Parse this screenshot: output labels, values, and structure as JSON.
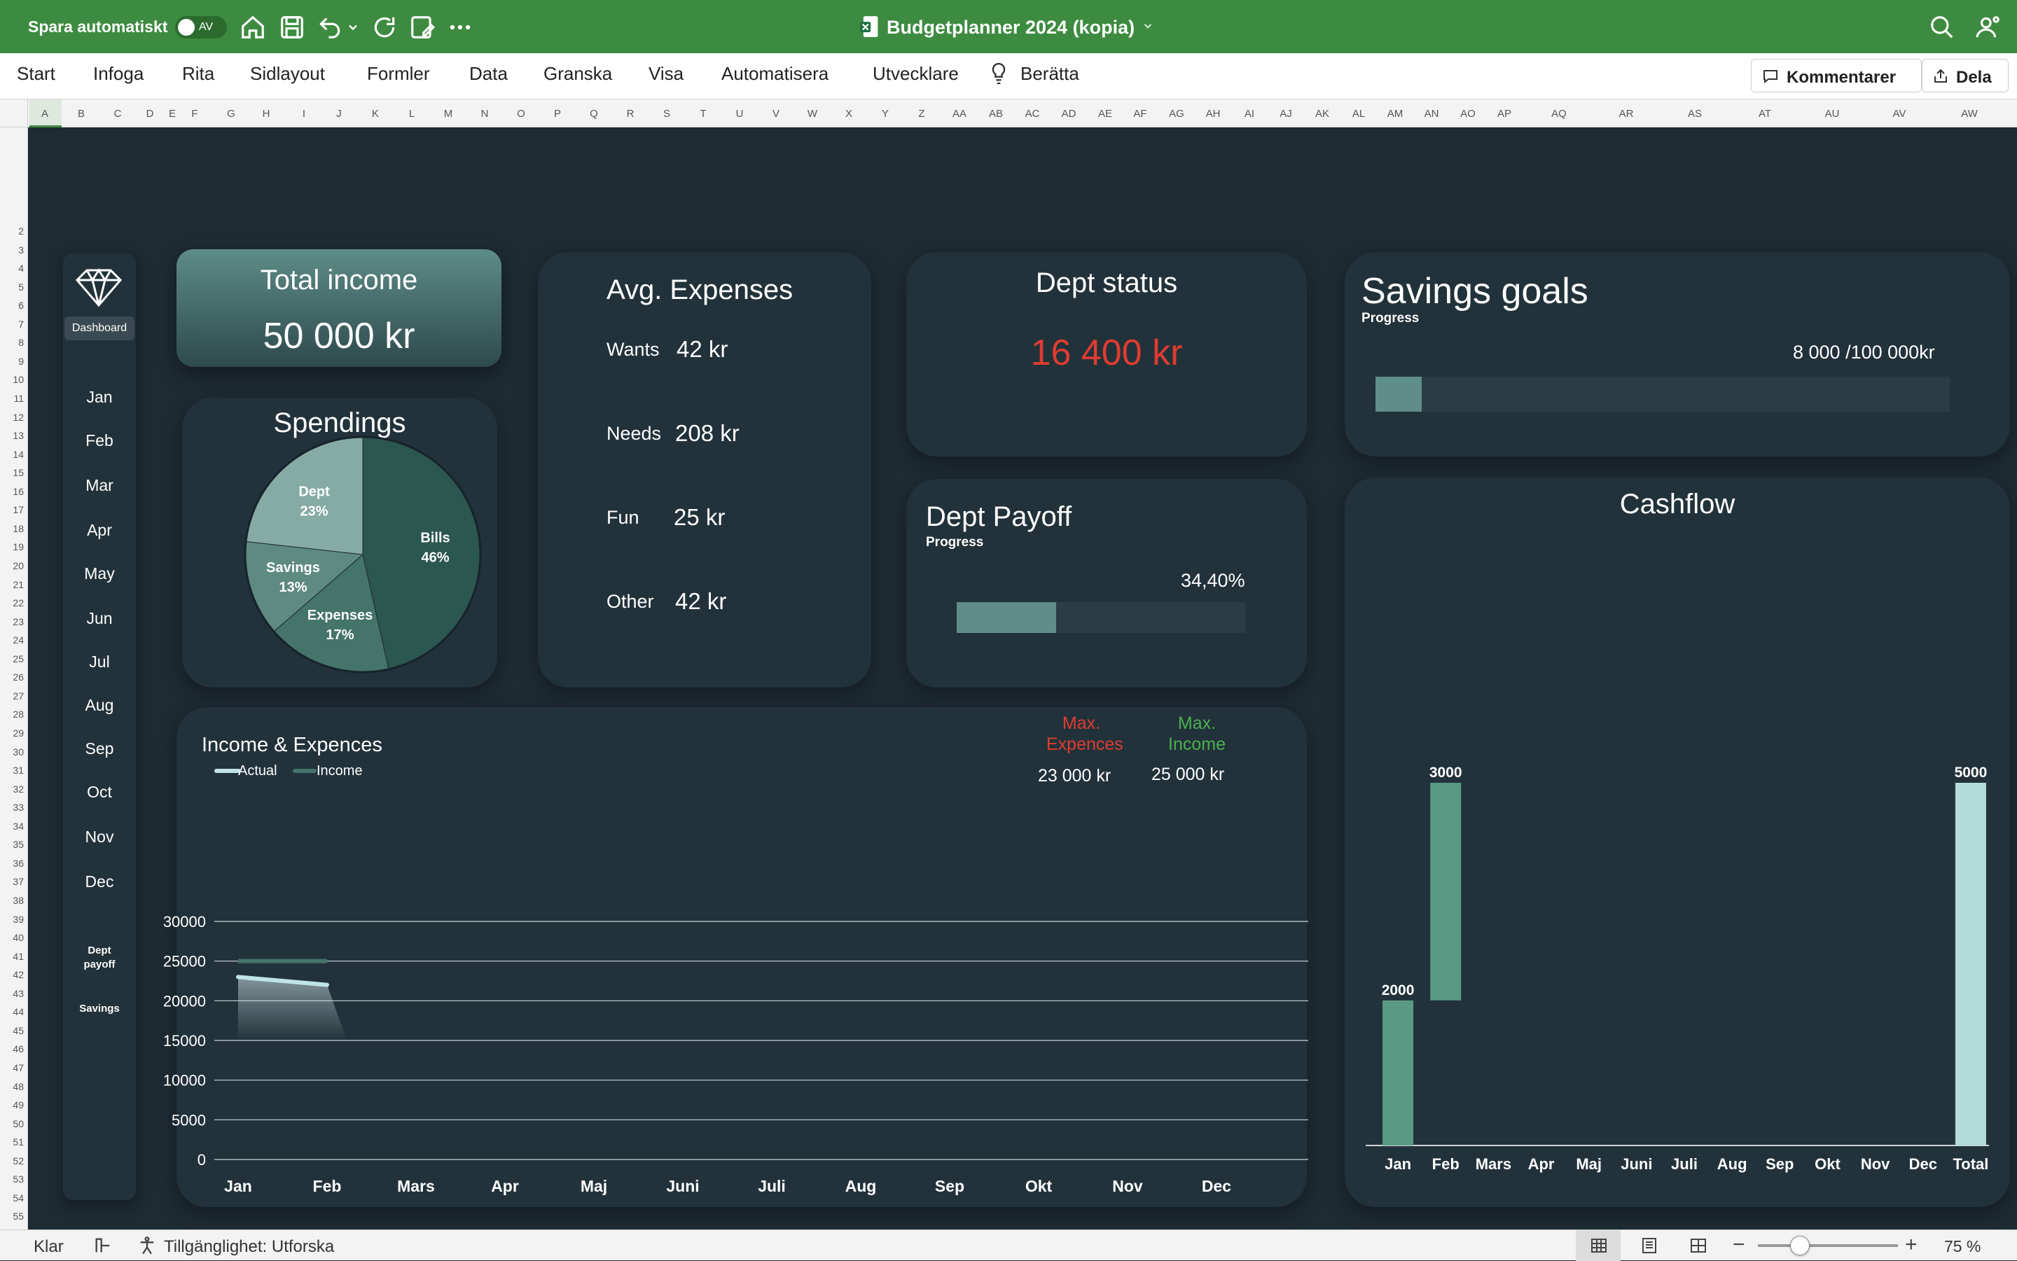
{
  "titlebar": {
    "autosave_label": "Spara automatiskt",
    "autosave_state": "AV",
    "doc_title": "Budgetplanner 2024 (kopia)"
  },
  "ribbon": {
    "tabs": [
      "Start",
      "Infoga",
      "Rita",
      "Sidlayout",
      "Formler",
      "Data",
      "Granska",
      "Visa",
      "Automatisera",
      "Utvecklare"
    ],
    "tell_me": "Berätta",
    "comments_label": "Kommentarer",
    "share_label": "Dela"
  },
  "columns": [
    "A",
    "B",
    "C",
    "D",
    "E",
    "F",
    "G",
    "H",
    "I",
    "J",
    "K",
    "L",
    "M",
    "N",
    "O",
    "P",
    "Q",
    "R",
    "S",
    "T",
    "U",
    "V",
    "W",
    "X",
    "Y",
    "Z",
    "AA",
    "AB",
    "AC",
    "AD",
    "AE",
    "AF",
    "AG",
    "AH",
    "AI",
    "AJ",
    "AK",
    "AL",
    "AM",
    "AN",
    "AO",
    "AP",
    "AQ",
    "AR",
    "AS",
    "AT",
    "AU",
    "AV",
    "AW"
  ],
  "rows": [
    "2",
    "3",
    "4",
    "5",
    "6",
    "7",
    "8",
    "9",
    "10",
    "11",
    "12",
    "13",
    "14",
    "15",
    "16",
    "17",
    "18",
    "19",
    "20",
    "21",
    "22",
    "23",
    "24",
    "25",
    "26",
    "27",
    "28",
    "29",
    "30",
    "31",
    "32",
    "33",
    "34",
    "35",
    "36",
    "37",
    "38",
    "39",
    "40",
    "41",
    "42",
    "43",
    "44",
    "45",
    "46",
    "47",
    "48",
    "49",
    "50",
    "51",
    "52",
    "53",
    "54",
    "55"
  ],
  "sidebar": {
    "dashboard_label": "Dashboard",
    "months": [
      "Jan",
      "Feb",
      "Mar",
      "Apr",
      "May",
      "Jun",
      "Jul",
      "Aug",
      "Sep",
      "Oct",
      "Nov",
      "Dec"
    ],
    "dept_payoff_label": "Dept payoff",
    "savings_label": "Savings"
  },
  "total_income": {
    "title": "Total income",
    "value": "50 000 kr"
  },
  "spendings": {
    "title": "Spendings",
    "slices": [
      {
        "name": "Bills",
        "pct": "46%",
        "value": 46,
        "color": "#2c5650"
      },
      {
        "name": "Expenses",
        "pct": "17%",
        "value": 17,
        "color": "#45746b"
      },
      {
        "name": "Savings",
        "pct": "13%",
        "value": 13,
        "color": "#5f8a82"
      },
      {
        "name": "Dept",
        "pct": "23%",
        "value": 23,
        "color": "#86aba4"
      }
    ]
  },
  "avg_expenses": {
    "title": "Avg. Expenses",
    "items": [
      {
        "label": "Wants",
        "value": "42 kr"
      },
      {
        "label": "Needs",
        "value": "208 kr"
      },
      {
        "label": "Fun",
        "value": "25 kr"
      },
      {
        "label": "Other",
        "value": "42 kr"
      }
    ]
  },
  "dept_status": {
    "title": "Dept status",
    "value": "16 400 kr",
    "color": "#e03c31"
  },
  "dept_payoff": {
    "title": "Dept Payoff",
    "subtitle": "Progress",
    "percent_label": "34,40%",
    "fraction": 0.344
  },
  "savings_goals": {
    "title": "Savings goals",
    "subtitle": "Progress",
    "progress_text": "8 000 /100 000kr",
    "fraction": 0.08
  },
  "income_expences": {
    "title": "Income & Expences",
    "legend": [
      "Actual",
      "Income"
    ],
    "max_expences_label": "Max. Expences",
    "max_expences_value": "23 000 kr",
    "max_income_label": "Max. Income",
    "max_income_value": "25 000 kr"
  },
  "cashflow": {
    "title": "Cashflow"
  },
  "chart_data": [
    {
      "type": "line",
      "title": "Income & Expences",
      "categories": [
        "Jan",
        "Feb",
        "Mars",
        "Apr",
        "Maj",
        "Juni",
        "Juli",
        "Aug",
        "Sep",
        "Okt",
        "Nov",
        "Dec"
      ],
      "series": [
        {
          "name": "Actual",
          "values": [
            23000,
            22000,
            null,
            null,
            null,
            null,
            null,
            null,
            null,
            null,
            null,
            null
          ],
          "color": "#bfe3e6"
        },
        {
          "name": "Income",
          "values": [
            25000,
            25000,
            null,
            null,
            null,
            null,
            null,
            null,
            null,
            null,
            null,
            null
          ],
          "color": "#45746b"
        }
      ],
      "yticks": [
        0,
        5000,
        10000,
        15000,
        20000,
        25000,
        30000
      ],
      "ylim": [
        0,
        30000
      ],
      "grid": true,
      "legend": "top-left"
    },
    {
      "type": "bar",
      "title": "Cashflow",
      "subtype": "waterfall",
      "categories": [
        "Jan",
        "Feb",
        "Mars",
        "Apr",
        "Maj",
        "Juni",
        "Juli",
        "Aug",
        "Sep",
        "Okt",
        "Nov",
        "Dec",
        "Total"
      ],
      "values": [
        2000,
        3000,
        0,
        0,
        0,
        0,
        0,
        0,
        0,
        0,
        0,
        0,
        5000
      ],
      "labels": [
        "2000",
        "3000",
        "",
        "",
        "",
        "",
        "",
        "",
        "",
        "",
        "",
        "",
        "5000"
      ],
      "ylim": [
        0,
        5000
      ],
      "colors": {
        "step": "#5a9a84",
        "total": "#b3dcd9"
      }
    }
  ],
  "statusbar": {
    "ready": "Klar",
    "accessibility": "Tillgänglighet: Utforska",
    "zoom": "75 %",
    "zoom_fraction": 0.3
  }
}
